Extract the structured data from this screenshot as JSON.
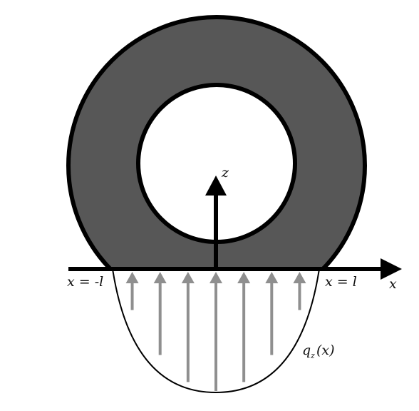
{
  "labels": {
    "z_axis": "z",
    "x_axis": "x",
    "left_bound": "x = -l",
    "right_bound": "x = l",
    "load_main": "q",
    "load_sub": "z",
    "load_arg": "(x)"
  },
  "colors": {
    "ring_fill": "#575757",
    "outline": "#000000",
    "load_arrow": "#8f8f8f",
    "background": "#ffffff"
  },
  "load_arrow_count": 7
}
